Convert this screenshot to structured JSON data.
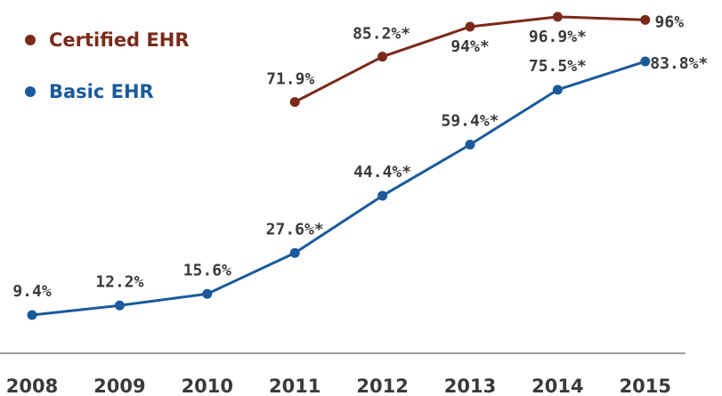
{
  "chart_data": {
    "type": "line",
    "categories": [
      "2008",
      "2009",
      "2010",
      "2011",
      "2012",
      "2013",
      "2014",
      "2015"
    ],
    "series": [
      {
        "name": "Certified EHR",
        "color": "#7a2a1a",
        "values": [
          null,
          null,
          null,
          71.9,
          85.2,
          94,
          96.9,
          96
        ],
        "labels": [
          null,
          null,
          null,
          "71.9%",
          "85.2%*",
          "94%*",
          "96.9%*",
          "96%"
        ]
      },
      {
        "name": "Basic EHR",
        "color": "#1a5a9c",
        "values": [
          9.4,
          12.2,
          15.6,
          27.6,
          44.4,
          59.4,
          75.5,
          83.8
        ],
        "labels": [
          "9.4%",
          "12.2%",
          "15.6%",
          "27.6%*",
          "44.4%*",
          "59.4%*",
          "75.5%*",
          "83.8%*"
        ]
      }
    ],
    "ylim": [
      0,
      100
    ],
    "grid": false,
    "legend_position": "top-left",
    "axis_color": "#9a9a9a",
    "label_color": "#3a3a3a"
  }
}
